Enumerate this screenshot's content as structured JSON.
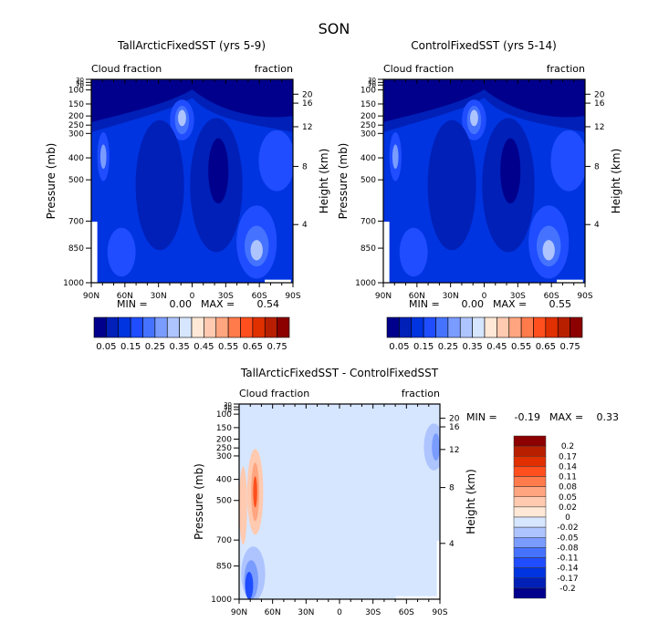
{
  "page_title": "SON",
  "chart_data": [
    {
      "type": "heatmap",
      "id": "panel1",
      "title": "TallArcticFixedSST (yrs 5-9)",
      "left_string": "Cloud fraction",
      "right_string": "fraction",
      "xlabel": "",
      "ylabel": "Pressure (mb)",
      "ylabel_right": "Height (km)",
      "x_ticks": [
        "90N",
        "60N",
        "30N",
        "0",
        "30S",
        "60S",
        "90S"
      ],
      "y_ticks": [
        "30",
        "50",
        "70",
        "100",
        "150",
        "200",
        "250",
        "300",
        "400",
        "500",
        "700",
        "850",
        "1000"
      ],
      "y_ticks_right": [
        "20",
        "16",
        "12",
        "8",
        "4"
      ],
      "ylim": [
        1000,
        30
      ],
      "stats": {
        "min_label": "MIN =",
        "min": "0.00",
        "max_label": "MAX =",
        "max": "0.54"
      },
      "colorbar": {
        "orientation": "horizontal",
        "labels": [
          "0.05",
          "0.15",
          "0.25",
          "0.35",
          "0.45",
          "0.55",
          "0.65",
          "0.75"
        ],
        "colors": [
          "#00008c",
          "#0020b8",
          "#0034e0",
          "#1f4dff",
          "#4573ff",
          "#7a9cff",
          "#aec4ff",
          "#d6e6ff",
          "#ffe8d6",
          "#ffcab0",
          "#ffa57f",
          "#ff7b4c",
          "#ff4f1e",
          "#e03000",
          "#b81f00",
          "#8c0000"
        ]
      }
    },
    {
      "type": "heatmap",
      "id": "panel2",
      "title": "ControlFixedSST (yrs 5-14)",
      "left_string": "Cloud fraction",
      "right_string": "fraction",
      "xlabel": "",
      "ylabel": "Pressure (mb)",
      "ylabel_right": "Height (km)",
      "x_ticks": [
        "90N",
        "60N",
        "30N",
        "0",
        "30S",
        "60S",
        "90S"
      ],
      "y_ticks": [
        "30",
        "50",
        "70",
        "100",
        "150",
        "200",
        "250",
        "300",
        "400",
        "500",
        "700",
        "850",
        "1000"
      ],
      "y_ticks_right": [
        "20",
        "16",
        "12",
        "8",
        "4"
      ],
      "ylim": [
        1000,
        30
      ],
      "stats": {
        "min_label": "MIN =",
        "min": "0.00",
        "max_label": "MAX =",
        "max": "0.55"
      },
      "colorbar": {
        "orientation": "horizontal",
        "labels": [
          "0.05",
          "0.15",
          "0.25",
          "0.35",
          "0.45",
          "0.55",
          "0.65",
          "0.75"
        ],
        "colors": [
          "#00008c",
          "#0020b8",
          "#0034e0",
          "#1f4dff",
          "#4573ff",
          "#7a9cff",
          "#aec4ff",
          "#d6e6ff",
          "#ffe8d6",
          "#ffcab0",
          "#ffa57f",
          "#ff7b4c",
          "#ff4f1e",
          "#e03000",
          "#b81f00",
          "#8c0000"
        ]
      }
    },
    {
      "type": "heatmap",
      "id": "panel3",
      "title": "TallArcticFixedSST - ControlFixedSST",
      "left_string": "Cloud fraction",
      "right_string": "fraction",
      "xlabel": "",
      "ylabel": "Pressure (mb)",
      "ylabel_right": "Height (km)",
      "x_ticks": [
        "90N",
        "60N",
        "30N",
        "0",
        "30S",
        "60S",
        "90S"
      ],
      "y_ticks": [
        "30",
        "50",
        "70",
        "100",
        "150",
        "200",
        "250",
        "300",
        "400",
        "500",
        "700",
        "850",
        "1000"
      ],
      "y_ticks_right": [
        "20",
        "16",
        "12",
        "8",
        "4"
      ],
      "ylim": [
        1000,
        30
      ],
      "stats": {
        "min_label": "MIN =",
        "min": "-0.19",
        "max_label": "MAX =",
        "max": "0.33"
      },
      "colorbar": {
        "orientation": "vertical",
        "labels": [
          "0.2",
          "0.17",
          "0.14",
          "0.11",
          "0.08",
          "0.05",
          "0.02",
          "0",
          "-0.02",
          "-0.05",
          "-0.08",
          "-0.11",
          "-0.14",
          "-0.17",
          "-0.2"
        ],
        "colors": [
          "#8c0000",
          "#b81f00",
          "#e03000",
          "#ff4f1e",
          "#ff7b4c",
          "#ffa57f",
          "#ffcab0",
          "#ffe8d6",
          "#d6e6ff",
          "#aec4ff",
          "#7a9cff",
          "#4573ff",
          "#1f4dff",
          "#0034e0",
          "#0020b8",
          "#00008c"
        ]
      }
    }
  ]
}
